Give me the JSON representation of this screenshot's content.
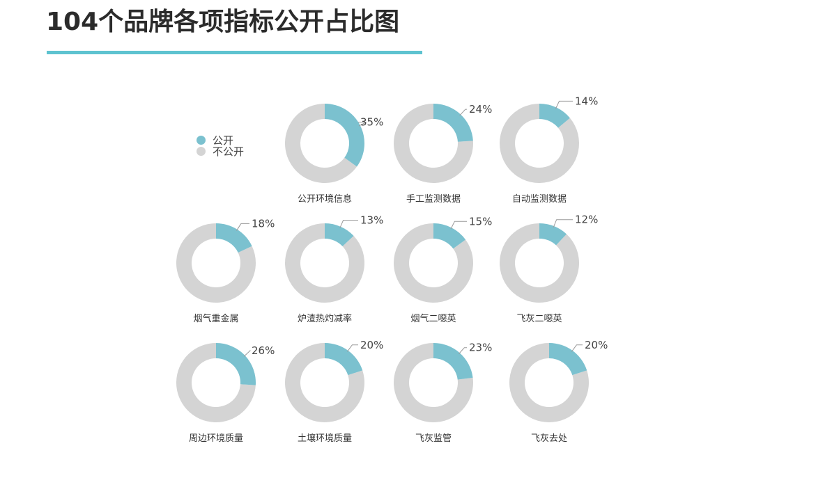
{
  "title": "104个品牌各项指标公开占比图",
  "colors": {
    "accent": "#5ec3d0",
    "public": "#7bc1cf",
    "not_public": "#d4d4d4"
  },
  "legend": [
    {
      "label": "公开",
      "color": "#7bc1cf"
    },
    {
      "label": "不公开",
      "color": "#d4d4d4"
    }
  ],
  "chart_data": {
    "type": "pie",
    "title": "104个品牌各项指标公开占比图",
    "series_names": [
      "公开",
      "不公开"
    ],
    "charts": [
      {
        "name": "公开环境信息",
        "public_pct": 35
      },
      {
        "name": "手工监测数据",
        "public_pct": 24
      },
      {
        "name": "自动监测数据",
        "public_pct": 14
      },
      {
        "name": "烟气重金属",
        "public_pct": 18
      },
      {
        "name": "炉渣热灼减率",
        "public_pct": 13
      },
      {
        "name": "烟气二噁英",
        "public_pct": 15
      },
      {
        "name": "飞灰二噁英",
        "public_pct": 12
      },
      {
        "name": "周边环境质量",
        "public_pct": 26
      },
      {
        "name": "土壤环境质量",
        "public_pct": 20
      },
      {
        "name": "飞灰监管",
        "public_pct": 23
      },
      {
        "name": "飞灰去处",
        "public_pct": 20
      }
    ]
  }
}
